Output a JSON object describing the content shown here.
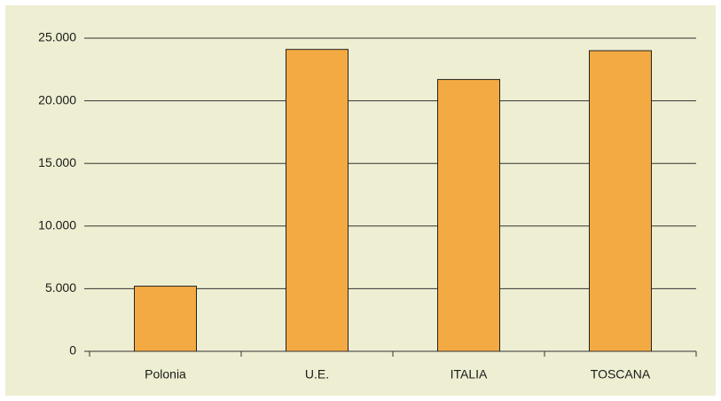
{
  "chart_data": {
    "type": "bar",
    "categories": [
      "Polonia",
      "U.E.",
      "ITALIA",
      "TOSCANA"
    ],
    "values": [
      5200,
      24100,
      21700,
      24000
    ],
    "color": "#f4aa42",
    "ylim": [
      0,
      25000
    ],
    "yticks": [
      0,
      {
        "value": 5000,
        "label": "5.000"
      },
      {
        "value": 10000,
        "label": "10.000"
      },
      {
        "value": 15000,
        "label": "15.000"
      },
      {
        "value": 20000,
        "label": "20.000"
      },
      {
        "value": 25000,
        "label": "25.000"
      }
    ],
    "grid": true
  }
}
